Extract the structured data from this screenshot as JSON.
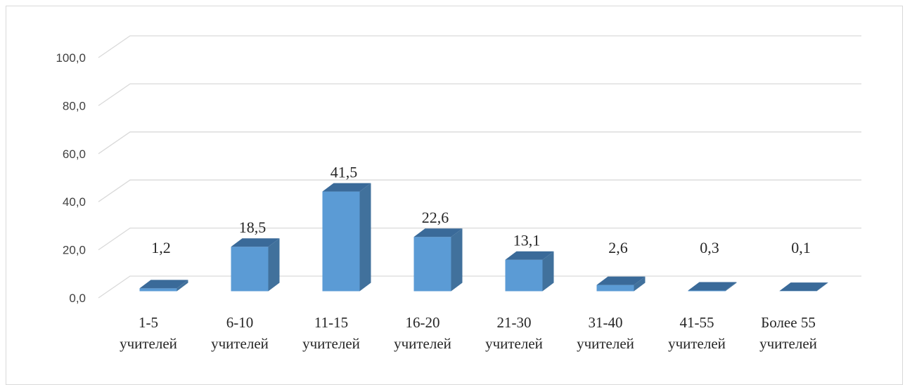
{
  "chart_data": {
    "type": "bar",
    "style": "3d-column",
    "categories": [
      [
        "1-5",
        "учителей"
      ],
      [
        "6-10",
        "учителей"
      ],
      [
        "11-15",
        "учителей"
      ],
      [
        "16-20",
        "учителей"
      ],
      [
        "21-30",
        "учителей"
      ],
      [
        "31-40",
        "учителей"
      ],
      [
        "41-55",
        "учителей"
      ],
      [
        "Более 55",
        "учителей"
      ]
    ],
    "values": [
      1.2,
      18.5,
      41.5,
      22.6,
      13.1,
      2.6,
      0.3,
      0.1
    ],
    "value_labels": [
      "1,2",
      "18,5",
      "41,5",
      "22,6",
      "13,1",
      "2,6",
      "0,3",
      "0,1"
    ],
    "yticks": [
      "0,0",
      "20,0",
      "40,0",
      "60,0",
      "80,0",
      "100,0"
    ],
    "ylim": [
      0,
      100
    ],
    "grid": true,
    "legend": "none",
    "title": "",
    "xlabel": "",
    "ylabel": "",
    "colors": {
      "front": "#5b9bd5",
      "side": "#41719c",
      "top": "#3a6a99",
      "grid": "#d9d9d9"
    }
  }
}
